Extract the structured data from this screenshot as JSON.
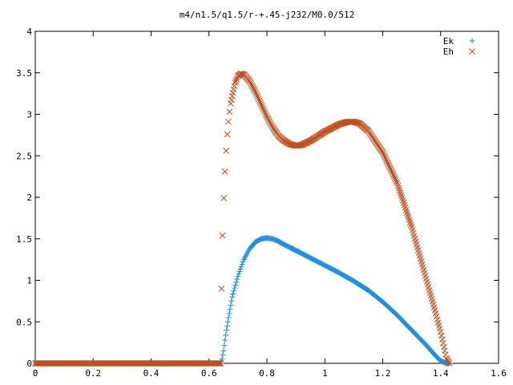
{
  "chart_data": {
    "type": "scatter",
    "title": "m4/n1.5/q1.5/r-+.45-j232/M0.0/512",
    "xlabel": "",
    "ylabel": "",
    "xlim": [
      0,
      1.6
    ],
    "ylim": [
      0,
      4
    ],
    "x_ticks": [
      "0",
      "0.2",
      "0.4",
      "0.6",
      "0.8",
      "1",
      "1.2",
      "1.4",
      "1.6"
    ],
    "y_ticks": [
      "0",
      "0.5",
      "1",
      "1.5",
      "2",
      "2.5",
      "3",
      "3.5",
      "4"
    ],
    "grid": false,
    "legend_position": "top-right",
    "series": [
      {
        "name": "Ek",
        "marker": "plus",
        "color": "#1f8ee6",
        "points": [
          [
            0.0,
            0
          ],
          [
            0.05,
            0
          ],
          [
            0.1,
            0
          ],
          [
            0.15,
            0
          ],
          [
            0.2,
            0
          ],
          [
            0.25,
            0
          ],
          [
            0.3,
            0
          ],
          [
            0.35,
            0
          ],
          [
            0.4,
            0
          ],
          [
            0.45,
            0
          ],
          [
            0.5,
            0
          ],
          [
            0.55,
            0
          ],
          [
            0.6,
            0
          ],
          [
            0.64,
            0
          ],
          [
            0.645,
            0.05
          ],
          [
            0.65,
            0.15
          ],
          [
            0.655,
            0.28
          ],
          [
            0.66,
            0.4
          ],
          [
            0.67,
            0.6
          ],
          [
            0.68,
            0.8
          ],
          [
            0.7,
            1.05
          ],
          [
            0.72,
            1.25
          ],
          [
            0.74,
            1.38
          ],
          [
            0.76,
            1.46
          ],
          [
            0.78,
            1.5
          ],
          [
            0.8,
            1.51
          ],
          [
            0.82,
            1.5
          ],
          [
            0.84,
            1.47
          ],
          [
            0.86,
            1.43
          ],
          [
            0.9,
            1.36
          ],
          [
            0.95,
            1.27
          ],
          [
            1.0,
            1.18
          ],
          [
            1.05,
            1.09
          ],
          [
            1.1,
            0.99
          ],
          [
            1.15,
            0.88
          ],
          [
            1.2,
            0.74
          ],
          [
            1.25,
            0.58
          ],
          [
            1.3,
            0.4
          ],
          [
            1.35,
            0.22
          ],
          [
            1.38,
            0.1
          ],
          [
            1.4,
            0.03
          ],
          [
            1.42,
            0.0
          ],
          [
            1.43,
            0.0
          ]
        ]
      },
      {
        "name": "Eh",
        "marker": "cross",
        "color": "#c0501e",
        "points": [
          [
            0.0,
            0
          ],
          [
            0.05,
            0
          ],
          [
            0.1,
            0
          ],
          [
            0.15,
            0
          ],
          [
            0.2,
            0
          ],
          [
            0.25,
            0
          ],
          [
            0.3,
            0
          ],
          [
            0.35,
            0
          ],
          [
            0.4,
            0
          ],
          [
            0.45,
            0
          ],
          [
            0.5,
            0
          ],
          [
            0.55,
            0
          ],
          [
            0.6,
            0
          ],
          [
            0.64,
            0
          ],
          [
            0.643,
            0.9
          ],
          [
            0.647,
            1.54
          ],
          [
            0.651,
            1.99
          ],
          [
            0.655,
            2.31
          ],
          [
            0.659,
            2.56
          ],
          [
            0.663,
            2.76
          ],
          [
            0.667,
            2.91
          ],
          [
            0.671,
            3.03
          ],
          [
            0.675,
            3.13
          ],
          [
            0.68,
            3.22
          ],
          [
            0.685,
            3.3
          ],
          [
            0.69,
            3.38
          ],
          [
            0.7,
            3.46
          ],
          [
            0.71,
            3.49
          ],
          [
            0.72,
            3.48
          ],
          [
            0.74,
            3.4
          ],
          [
            0.76,
            3.27
          ],
          [
            0.78,
            3.12
          ],
          [
            0.8,
            2.97
          ],
          [
            0.82,
            2.84
          ],
          [
            0.84,
            2.74
          ],
          [
            0.86,
            2.68
          ],
          [
            0.88,
            2.64
          ],
          [
            0.9,
            2.62
          ],
          [
            0.92,
            2.63
          ],
          [
            0.95,
            2.68
          ],
          [
            1.0,
            2.79
          ],
          [
            1.05,
            2.88
          ],
          [
            1.08,
            2.91
          ],
          [
            1.1,
            2.91
          ],
          [
            1.12,
            2.89
          ],
          [
            1.15,
            2.8
          ],
          [
            1.2,
            2.54
          ],
          [
            1.25,
            2.17
          ],
          [
            1.3,
            1.64
          ],
          [
            1.35,
            1.02
          ],
          [
            1.38,
            0.64
          ],
          [
            1.4,
            0.38
          ],
          [
            1.42,
            0.06
          ],
          [
            1.43,
            0.0
          ]
        ]
      }
    ]
  }
}
